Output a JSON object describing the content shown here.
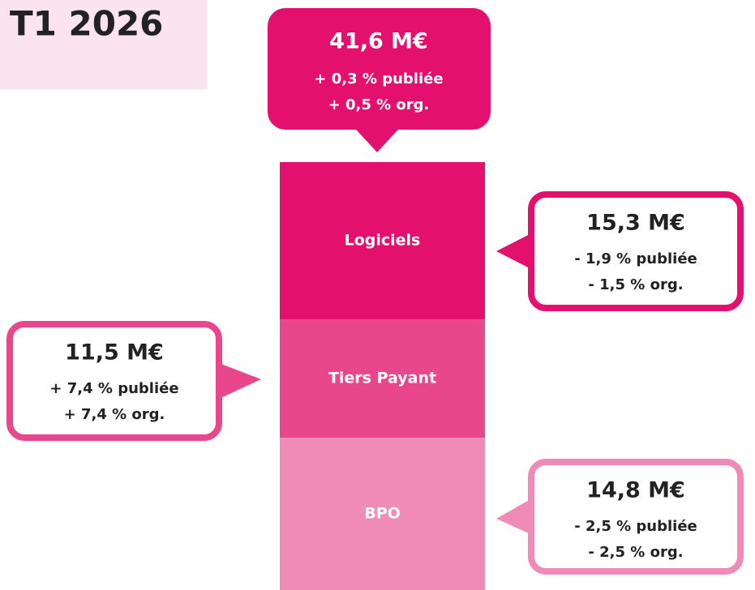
{
  "chart_data": {
    "type": "stacked_bar",
    "title": "T1 2026",
    "total": {
      "value": 41.6,
      "label": "41,6 M€",
      "notes": [
        "+ 0,3 % publiée",
        "+ 0,5 % org."
      ]
    },
    "series": [
      {
        "name": "BPO",
        "color": "#f08ab7",
        "values": [
          14.8
        ],
        "value_labels": [
          "14,8 M€"
        ],
        "notes": [
          "- 2,5 % publiée",
          "- 2,5 % org."
        ]
      },
      {
        "name": "Tiers Payant",
        "color": "#e8478c",
        "values": [
          11.5
        ],
        "value_labels": [
          "11,5 M€"
        ],
        "notes": [
          "+ 7,4 % publiée",
          "+ 7,4 % org."
        ]
      },
      {
        "name": "Logiciels",
        "color": "#e3106d",
        "values": [
          15.3
        ],
        "value_labels": [
          "15,3 M€"
        ],
        "notes": [
          "- 1,9 % publiée",
          "- 1,5 % org."
        ]
      }
    ]
  }
}
